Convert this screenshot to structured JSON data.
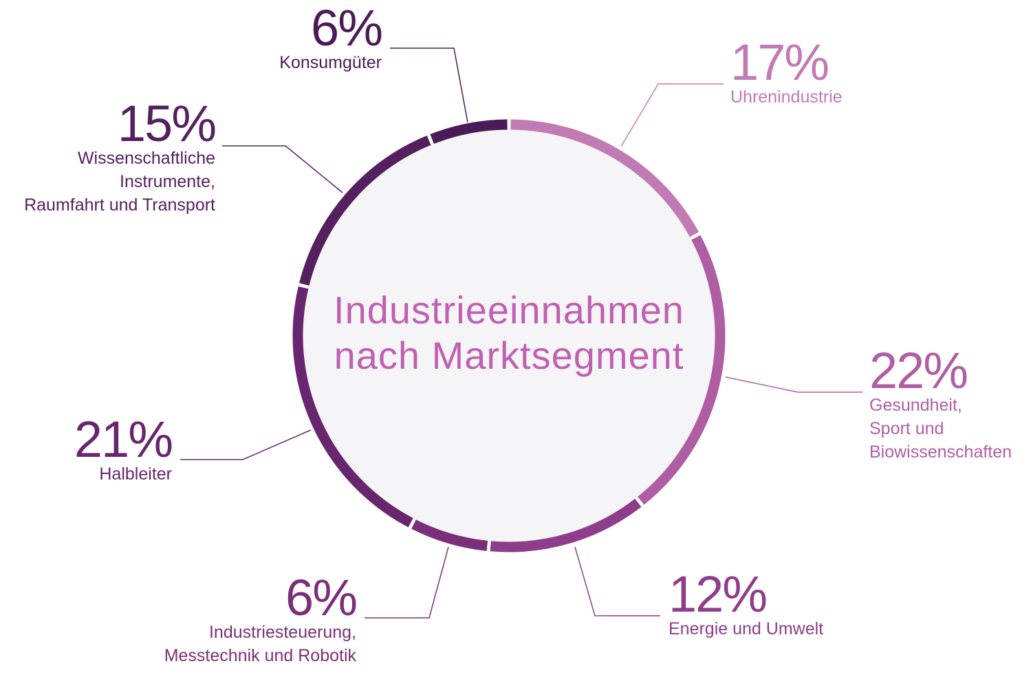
{
  "chart_data": {
    "type": "donut",
    "title": "Industrieeinnahmen\nnach Marktsegment",
    "categories": [
      "Uhrenindustrie",
      "Gesundheit,\nSport und\nBiowissenschaften",
      "Energie und Umwelt",
      "Industriesteuerung,\nMesstechnik und Robotik",
      "Halbleiter",
      "Wissenschaftliche\nInstrumente,\nRaumfahrt und Transport",
      "Konsumgüter"
    ],
    "values": [
      17,
      22,
      12,
      6,
      21,
      15,
      6
    ],
    "value_labels": [
      "17%",
      "22%",
      "12%",
      "6%",
      "21%",
      "15%",
      "6%"
    ],
    "colors": [
      "#c27ab4",
      "#b05ea4",
      "#8e3d8a",
      "#7a2f7a",
      "#67266e",
      "#55205f",
      "#4b1a58"
    ]
  }
}
